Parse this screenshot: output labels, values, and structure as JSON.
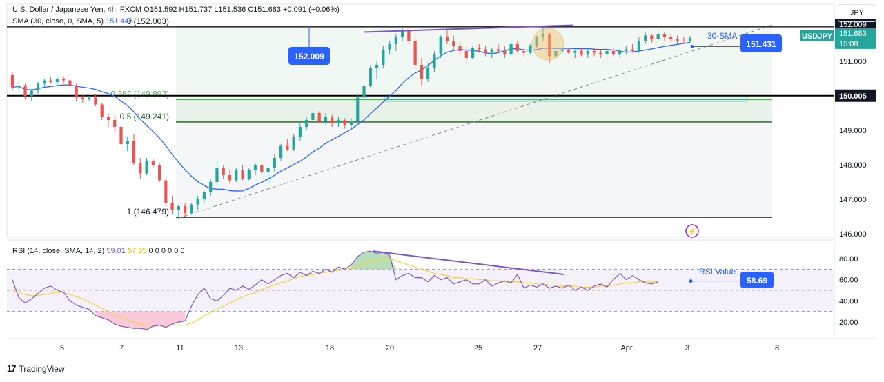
{
  "header": {
    "symbol": "U.S. Dollar / Japanese Yen, 4h, FXCM",
    "ohlc": "O151.592 H151.737 L151.536 C151.683 +0.091 (+0.06%)",
    "sma_label": "SMA (30, close, 0, SMA, 5)",
    "sma_value": "151.446",
    "rsi_label": "RSI (14, close, SMA, 14, 2)",
    "rsi_value": "59.01",
    "rsi_sma_value": "57.65",
    "rsi_extra": "0 0 0 0 0 0"
  },
  "currency_button": "JPY",
  "footer": {
    "logo": "17",
    "brand": "TradingView"
  },
  "colors": {
    "up": "#26a69a",
    "down": "#ef5350",
    "sma": "#2962ff",
    "trend": "#7e57c2",
    "rsi": "#7e57c2",
    "rsi_ma": "#f5d142",
    "badge": "#2962ff",
    "fib_382": "#4caf50",
    "fib_05": "#1b5e20"
  },
  "annotations": {
    "sma_label": "30-SMA",
    "rsi_label": "RSI Value",
    "peak_label": "152.009",
    "sma_price": "151.431",
    "rsi_current": "58.69",
    "price_current": "151.683",
    "price_ticker": "USDJPY",
    "price_countdown": "15:08",
    "level_150": "150.005",
    "price_top_cut": "152.009"
  },
  "chart_data": {
    "type": "candlestick",
    "price_axis": {
      "ticks": [
        "151.000",
        "150.000",
        "149.000",
        "148.000",
        "147.000",
        "146.000"
      ],
      "ylim": [
        145.9,
        152.1
      ]
    },
    "rsi_axis": {
      "ticks": [
        "80.00",
        "60.00",
        "40.00",
        "20.00"
      ],
      "ylim": [
        5,
        95
      ],
      "bands": [
        30,
        50,
        70
      ]
    },
    "x_ticks": [
      "5",
      "7",
      "11",
      "13",
      "18",
      "20",
      "25",
      "27",
      "Apr",
      "3",
      "8"
    ],
    "fib_levels": [
      {
        "label": "0 (152.003)",
        "price": 152.003
      },
      {
        "label": "0.382 (149.893)",
        "price": 149.893
      },
      {
        "label": "0.5 (149.241)",
        "price": 149.241
      },
      {
        "label": "1 (146.479)",
        "price": 146.479
      }
    ],
    "horizontal_level": 150.005,
    "candles": [
      [
        150.6,
        150.7,
        150.15,
        150.25
      ],
      [
        150.25,
        150.45,
        150.1,
        150.3
      ],
      [
        150.3,
        150.35,
        149.9,
        150.0
      ],
      [
        150.0,
        150.2,
        149.85,
        150.15
      ],
      [
        150.15,
        150.4,
        150.05,
        150.35
      ],
      [
        150.35,
        150.5,
        150.25,
        150.45
      ],
      [
        150.45,
        150.55,
        150.35,
        150.4
      ],
      [
        150.4,
        150.55,
        150.3,
        150.5
      ],
      [
        150.5,
        150.55,
        150.35,
        150.45
      ],
      [
        150.45,
        150.5,
        150.2,
        150.3
      ],
      [
        150.3,
        150.35,
        149.85,
        149.95
      ],
      [
        149.95,
        150.05,
        149.8,
        149.9
      ],
      [
        149.9,
        150.0,
        149.85,
        149.95
      ],
      [
        149.95,
        150.05,
        149.7,
        149.75
      ],
      [
        149.75,
        149.8,
        149.3,
        149.4
      ],
      [
        149.4,
        149.5,
        149.1,
        149.3
      ],
      [
        149.3,
        149.45,
        148.95,
        149.1
      ],
      [
        149.1,
        149.25,
        148.5,
        148.6
      ],
      [
        148.6,
        148.8,
        148.4,
        148.7
      ],
      [
        148.7,
        148.9,
        148.0,
        148.05
      ],
      [
        148.05,
        148.2,
        147.6,
        147.75
      ],
      [
        147.75,
        148.2,
        147.7,
        148.1
      ],
      [
        148.1,
        148.2,
        147.9,
        148.0
      ],
      [
        148.0,
        148.05,
        147.5,
        147.55
      ],
      [
        147.55,
        147.65,
        146.8,
        146.9
      ],
      [
        146.9,
        147.1,
        146.55,
        146.7
      ],
      [
        146.7,
        146.85,
        146.48,
        146.8
      ],
      [
        146.8,
        146.9,
        146.5,
        146.6
      ],
      [
        146.6,
        146.9,
        146.55,
        146.85
      ],
      [
        146.85,
        147.1,
        146.7,
        147.0
      ],
      [
        147.0,
        147.25,
        146.9,
        147.2
      ],
      [
        147.2,
        147.6,
        147.1,
        147.5
      ],
      [
        147.5,
        148.1,
        147.4,
        147.9
      ],
      [
        147.9,
        148.0,
        147.6,
        147.7
      ],
      [
        147.7,
        147.85,
        147.45,
        147.55
      ],
      [
        147.55,
        147.9,
        147.5,
        147.85
      ],
      [
        147.85,
        148.0,
        147.55,
        147.6
      ],
      [
        147.6,
        147.9,
        147.55,
        147.85
      ],
      [
        147.85,
        148.05,
        147.7,
        148.0
      ],
      [
        148.0,
        148.05,
        147.7,
        147.8
      ],
      [
        147.8,
        147.95,
        147.45,
        147.9
      ],
      [
        147.9,
        148.3,
        147.8,
        148.2
      ],
      [
        148.2,
        148.6,
        148.1,
        148.55
      ],
      [
        148.55,
        148.75,
        148.4,
        148.45
      ],
      [
        148.45,
        148.9,
        148.4,
        148.8
      ],
      [
        148.8,
        149.2,
        148.7,
        149.1
      ],
      [
        149.1,
        149.4,
        149.0,
        149.3
      ],
      [
        149.3,
        149.55,
        149.2,
        149.5
      ],
      [
        149.5,
        149.55,
        149.2,
        149.25
      ],
      [
        149.25,
        149.5,
        149.15,
        149.4
      ],
      [
        149.4,
        149.45,
        149.1,
        149.2
      ],
      [
        149.2,
        149.4,
        149.1,
        149.3
      ],
      [
        149.3,
        149.35,
        149.05,
        149.15
      ],
      [
        149.15,
        149.35,
        149.05,
        149.25
      ],
      [
        149.25,
        150.05,
        149.2,
        149.95
      ],
      [
        149.95,
        150.45,
        149.9,
        150.3
      ],
      [
        150.3,
        150.9,
        150.25,
        150.8
      ],
      [
        150.8,
        151.0,
        150.5,
        150.9
      ],
      [
        150.9,
        151.45,
        150.8,
        151.35
      ],
      [
        151.35,
        151.6,
        151.2,
        151.5
      ],
      [
        151.5,
        151.8,
        151.3,
        151.7
      ],
      [
        151.7,
        152.0,
        151.6,
        151.9
      ],
      [
        151.9,
        151.95,
        151.5,
        151.6
      ],
      [
        151.6,
        151.7,
        150.8,
        150.9
      ],
      [
        150.9,
        151.1,
        150.3,
        150.5
      ],
      [
        150.5,
        150.95,
        150.4,
        150.8
      ],
      [
        150.8,
        151.3,
        150.7,
        151.2
      ],
      [
        151.2,
        151.75,
        151.1,
        151.7
      ],
      [
        151.7,
        151.9,
        151.5,
        151.6
      ],
      [
        151.6,
        151.75,
        151.3,
        151.45
      ],
      [
        151.45,
        151.6,
        151.2,
        151.3
      ],
      [
        151.3,
        151.45,
        150.95,
        151.1
      ],
      [
        151.1,
        151.45,
        151.05,
        151.4
      ],
      [
        151.4,
        151.5,
        151.25,
        151.35
      ],
      [
        151.35,
        151.45,
        151.15,
        151.25
      ],
      [
        151.25,
        151.4,
        151.1,
        151.35
      ],
      [
        151.35,
        151.5,
        151.25,
        151.3
      ],
      [
        151.3,
        151.45,
        151.1,
        151.2
      ],
      [
        151.2,
        151.6,
        151.15,
        151.5
      ],
      [
        151.5,
        151.6,
        151.25,
        151.3
      ],
      [
        151.3,
        151.4,
        151.15,
        151.25
      ],
      [
        151.25,
        151.5,
        151.2,
        151.45
      ],
      [
        151.45,
        151.75,
        151.4,
        151.7
      ],
      [
        151.7,
        151.97,
        151.6,
        151.8
      ],
      [
        151.8,
        151.85,
        150.95,
        151.15
      ],
      [
        151.15,
        151.4,
        151.05,
        151.3
      ],
      [
        151.3,
        151.45,
        151.2,
        151.35
      ],
      [
        151.35,
        151.4,
        151.2,
        151.25
      ],
      [
        151.25,
        151.35,
        151.1,
        151.3
      ],
      [
        151.3,
        151.4,
        151.15,
        151.2
      ],
      [
        151.2,
        151.35,
        151.1,
        151.3
      ],
      [
        151.3,
        151.4,
        151.15,
        151.25
      ],
      [
        151.25,
        151.35,
        151.1,
        151.2
      ],
      [
        151.2,
        151.35,
        151.05,
        151.3
      ],
      [
        151.3,
        151.4,
        151.15,
        151.2
      ],
      [
        151.2,
        151.35,
        151.1,
        151.3
      ],
      [
        151.3,
        151.45,
        151.2,
        151.35
      ],
      [
        151.35,
        151.5,
        151.25,
        151.3
      ],
      [
        151.3,
        151.7,
        151.25,
        151.6
      ],
      [
        151.6,
        151.85,
        151.5,
        151.75
      ],
      [
        151.75,
        151.8,
        151.55,
        151.65
      ],
      [
        151.65,
        151.9,
        151.6,
        151.8
      ],
      [
        151.8,
        151.85,
        151.6,
        151.7
      ],
      [
        151.7,
        151.8,
        151.55,
        151.65
      ],
      [
        151.65,
        151.75,
        151.5,
        151.6
      ],
      [
        151.6,
        151.7,
        151.5,
        151.59
      ],
      [
        151.59,
        151.74,
        151.54,
        151.68
      ]
    ],
    "rsi": [
      60,
      43,
      38,
      42,
      47,
      52,
      54,
      50,
      48,
      40,
      36,
      34,
      32,
      26,
      24,
      22,
      18,
      16,
      15,
      14,
      14,
      13,
      16,
      17,
      15,
      18,
      20,
      21,
      35,
      46,
      52,
      42,
      40,
      45,
      52,
      50,
      54,
      51,
      55,
      60,
      56,
      60,
      64,
      66,
      62,
      67,
      64,
      68,
      66,
      70,
      67,
      72,
      70,
      74,
      82,
      86,
      87,
      85,
      86,
      83,
      60,
      64,
      66,
      62,
      62,
      58,
      64,
      60,
      62,
      56,
      58,
      60,
      56,
      56,
      60,
      54,
      57,
      59,
      57,
      65,
      52,
      55,
      53,
      56,
      52,
      54,
      52,
      55,
      50,
      53,
      50,
      54,
      56,
      53,
      60,
      66,
      60,
      64,
      60,
      57,
      56,
      58
    ],
    "rsi_ma": [
      50,
      48,
      46,
      45,
      45,
      46,
      47,
      48,
      48,
      46,
      44,
      42,
      39,
      36,
      33,
      30,
      27,
      24,
      22,
      20,
      18,
      17,
      17,
      17,
      17,
      17,
      17,
      17,
      19,
      22,
      26,
      29,
      32,
      35,
      38,
      41,
      44,
      46,
      48,
      51,
      53,
      55,
      57,
      59,
      61,
      63,
      64,
      65,
      66,
      67,
      68,
      69,
      70,
      71,
      73,
      75,
      77,
      78,
      79,
      80,
      78,
      76,
      74,
      72,
      70,
      68,
      66,
      65,
      64,
      62,
      62,
      61,
      61,
      60,
      60,
      59,
      59,
      58,
      58,
      58,
      57,
      57,
      56,
      56,
      55,
      55,
      54,
      54,
      54,
      53,
      53,
      53,
      54,
      54,
      55,
      56,
      57,
      57,
      58,
      58,
      58,
      58
    ]
  }
}
